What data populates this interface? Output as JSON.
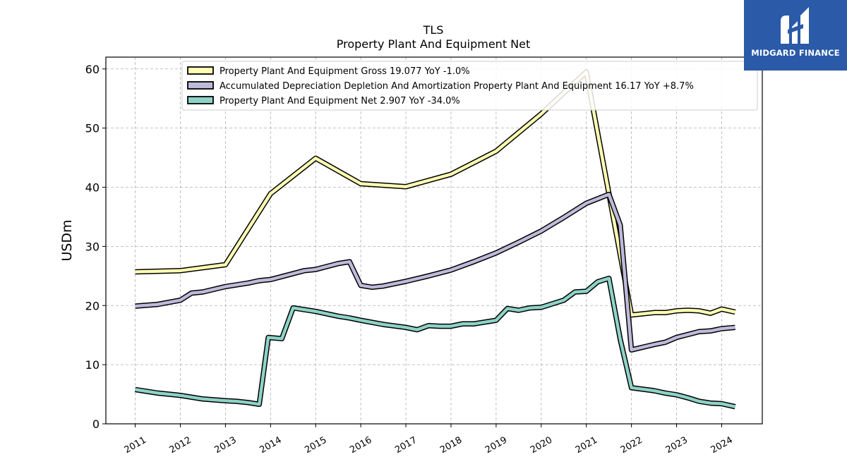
{
  "chart_data": {
    "type": "line",
    "title": "TLS",
    "subtitle": "Property Plant And Equipment Net",
    "xlabel": "",
    "ylabel": "USDm",
    "xlim": [
      2010.35,
      2024.9
    ],
    "ylim": [
      0,
      62
    ],
    "yticks": [
      0,
      10,
      20,
      30,
      40,
      50,
      60
    ],
    "xticks": [
      "2011",
      "2012",
      "2013",
      "2014",
      "2015",
      "2016",
      "2017",
      "2018",
      "2019",
      "2020",
      "2021",
      "2022",
      "2023",
      "2024"
    ],
    "grid": true,
    "legend_position": "top",
    "series": [
      {
        "name": "Property Plant And Equipment Gross  19.077 YoY -1.0%",
        "color": "#ffffb3",
        "points": [
          [
            2011.0,
            25.7
          ],
          [
            2012.0,
            25.9
          ],
          [
            2013.0,
            26.9
          ],
          [
            2014.0,
            38.9
          ],
          [
            2015.0,
            44.9
          ],
          [
            2016.0,
            40.6
          ],
          [
            2017.0,
            40.1
          ],
          [
            2018.0,
            42.2
          ],
          [
            2019.0,
            46.1
          ],
          [
            2020.0,
            52.4
          ],
          [
            2021.0,
            59.5
          ],
          [
            2022.0,
            18.4
          ],
          [
            2022.5,
            18.8
          ],
          [
            2022.75,
            18.8
          ],
          [
            2023.0,
            19.1
          ],
          [
            2023.25,
            19.2
          ],
          [
            2023.5,
            19.1
          ],
          [
            2023.75,
            18.7
          ],
          [
            2024.0,
            19.4
          ],
          [
            2024.3,
            18.9
          ]
        ]
      },
      {
        "name": "Accumulated Depreciation Depletion And Amortization Property Plant And Equipment  16.17 YoY +8.7%",
        "color": "#bebada",
        "points": [
          [
            2011.0,
            19.9
          ],
          [
            2011.5,
            20.2
          ],
          [
            2012.0,
            20.9
          ],
          [
            2012.25,
            22.1
          ],
          [
            2012.5,
            22.3
          ],
          [
            2013.0,
            23.2
          ],
          [
            2013.5,
            23.8
          ],
          [
            2013.75,
            24.2
          ],
          [
            2014.0,
            24.4
          ],
          [
            2014.5,
            25.4
          ],
          [
            2014.75,
            25.9
          ],
          [
            2015.0,
            26.1
          ],
          [
            2015.5,
            27.1
          ],
          [
            2015.75,
            27.4
          ],
          [
            2016.0,
            23.4
          ],
          [
            2016.25,
            23.1
          ],
          [
            2016.5,
            23.3
          ],
          [
            2017.0,
            24.1
          ],
          [
            2017.5,
            25.0
          ],
          [
            2018.0,
            26.0
          ],
          [
            2018.5,
            27.4
          ],
          [
            2019.0,
            28.9
          ],
          [
            2019.5,
            30.7
          ],
          [
            2020.0,
            32.6
          ],
          [
            2020.5,
            34.9
          ],
          [
            2021.0,
            37.3
          ],
          [
            2021.5,
            38.8
          ],
          [
            2021.75,
            33.6
          ],
          [
            2022.0,
            12.5
          ],
          [
            2022.5,
            13.4
          ],
          [
            2022.75,
            13.8
          ],
          [
            2023.0,
            14.6
          ],
          [
            2023.25,
            15.1
          ],
          [
            2023.5,
            15.6
          ],
          [
            2023.75,
            15.7
          ],
          [
            2024.0,
            16.1
          ],
          [
            2024.3,
            16.3
          ]
        ]
      },
      {
        "name": "Property Plant And Equipment Net  2.907 YoY -34.0%",
        "color": "#8dd3c7",
        "points": [
          [
            2011.0,
            5.8
          ],
          [
            2011.5,
            5.2
          ],
          [
            2012.0,
            4.8
          ],
          [
            2012.5,
            4.2
          ],
          [
            2013.0,
            3.9
          ],
          [
            2013.25,
            3.8
          ],
          [
            2013.5,
            3.6
          ],
          [
            2013.75,
            3.3
          ],
          [
            2013.95,
            14.6
          ],
          [
            2014.25,
            14.4
          ],
          [
            2014.5,
            19.6
          ],
          [
            2015.0,
            19.0
          ],
          [
            2015.5,
            18.2
          ],
          [
            2015.75,
            17.9
          ],
          [
            2016.0,
            17.5
          ],
          [
            2016.5,
            16.8
          ],
          [
            2017.0,
            16.3
          ],
          [
            2017.25,
            15.9
          ],
          [
            2017.5,
            16.6
          ],
          [
            2017.75,
            16.5
          ],
          [
            2018.0,
            16.5
          ],
          [
            2018.25,
            16.9
          ],
          [
            2018.5,
            16.9
          ],
          [
            2019.0,
            17.5
          ],
          [
            2019.25,
            19.5
          ],
          [
            2019.5,
            19.2
          ],
          [
            2019.75,
            19.6
          ],
          [
            2020.0,
            19.7
          ],
          [
            2020.5,
            20.9
          ],
          [
            2020.75,
            22.3
          ],
          [
            2021.0,
            22.4
          ],
          [
            2021.25,
            24.0
          ],
          [
            2021.5,
            24.6
          ],
          [
            2021.75,
            14.3
          ],
          [
            2022.0,
            6.1
          ],
          [
            2022.5,
            5.6
          ],
          [
            2022.75,
            5.2
          ],
          [
            2023.0,
            4.9
          ],
          [
            2023.25,
            4.4
          ],
          [
            2023.5,
            3.8
          ],
          [
            2023.75,
            3.5
          ],
          [
            2024.0,
            3.4
          ],
          [
            2024.3,
            2.9
          ]
        ]
      }
    ]
  },
  "logo": {
    "text": "MIDGARD FINANCE",
    "color": "#2a5aa8"
  }
}
